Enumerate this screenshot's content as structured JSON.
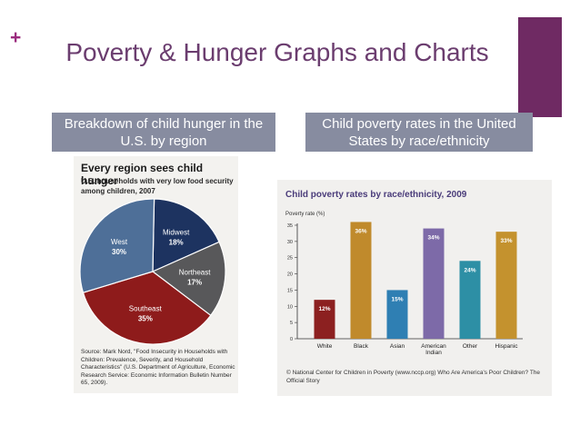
{
  "slide": {
    "title": "Poverty & Hunger Graphs and Charts",
    "caption_left": "Breakdown of child hunger in the U.S. by region",
    "caption_right": "Child poverty rates in the United States by race/ethnicity",
    "colors": {
      "accent": "#6f2a63",
      "title": "#6b3d6f",
      "caption_bg": "#878ca0"
    }
  },
  "chart_data": [
    {
      "type": "pie",
      "title": "Every region sees child hunger",
      "subtitle": "U.S. households with very low food security among children, 2007",
      "categories": [
        "Midwest",
        "Northeast",
        "Southeast",
        "West"
      ],
      "values": [
        18,
        17,
        35,
        30
      ],
      "value_labels": [
        "18%",
        "17%",
        "35%",
        "30%"
      ],
      "colors": [
        "#1d3360",
        "#58585a",
        "#8e1b1b",
        "#4e6f98"
      ],
      "source": "Source: Mark Nord, \"Food Insecurity in Households with Children: Prevalence, Severity, and Household Characteristics\" (U.S. Department of Agriculture, Economic Research Service: Economic Information Bulletin Number 65, 2009)."
    },
    {
      "type": "bar",
      "title": "Child poverty rates by race/ethnicity, 2009",
      "ylabel": "Poverty rate (%)",
      "categories": [
        "White",
        "Black",
        "Asian",
        "American Indian",
        "Other",
        "Hispanic"
      ],
      "values": [
        12,
        36,
        15,
        34,
        24,
        33
      ],
      "value_labels": [
        "12%",
        "36%",
        "15%",
        "34%",
        "24%",
        "33%"
      ],
      "colors": [
        "#8c2020",
        "#c08a2c",
        "#2f7fb3",
        "#7d6aa8",
        "#2d8fa5",
        "#c4922e"
      ],
      "ylim": [
        0,
        35
      ],
      "yticks": [
        0,
        5,
        10,
        15,
        20,
        25,
        30,
        35
      ],
      "source": "© National Center for Children in Poverty (www.nccp.org) Who Are America's Poor Children? The Official Story"
    }
  ]
}
